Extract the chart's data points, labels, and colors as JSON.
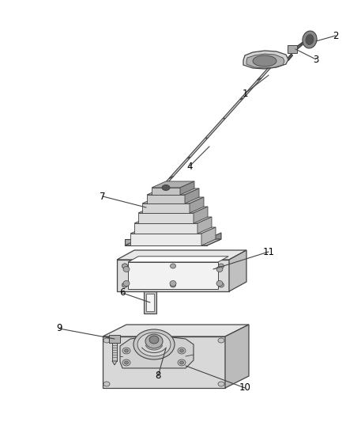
{
  "background_color": "#ffffff",
  "line_color": "#444444",
  "label_color": "#000000",
  "label_fontsize": 8.5,
  "fig_width": 4.39,
  "fig_height": 5.33,
  "dpi": 100
}
